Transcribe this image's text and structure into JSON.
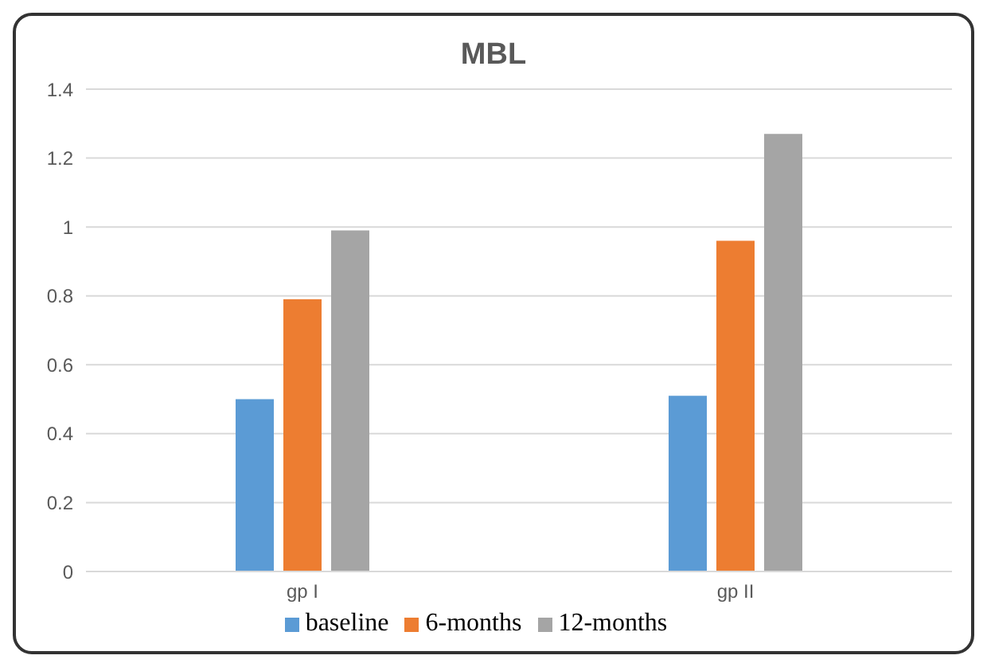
{
  "chart_data": {
    "type": "bar",
    "title": "MBL",
    "categories": [
      "gp I",
      "gp II"
    ],
    "series": [
      {
        "name": "baseline",
        "color": "#5b9bd5",
        "values": [
          0.5,
          0.51
        ]
      },
      {
        "name": "6-months",
        "color": "#ed7d31",
        "values": [
          0.79,
          0.96
        ]
      },
      {
        "name": "12-months",
        "color": "#a5a5a5",
        "values": [
          0.99,
          1.27
        ]
      }
    ],
    "ylim": [
      0,
      1.4
    ],
    "yticks": [
      0,
      0.2,
      0.4,
      0.6,
      0.8,
      1,
      1.2,
      1.4
    ],
    "grid": "y",
    "legend": "bottom"
  }
}
